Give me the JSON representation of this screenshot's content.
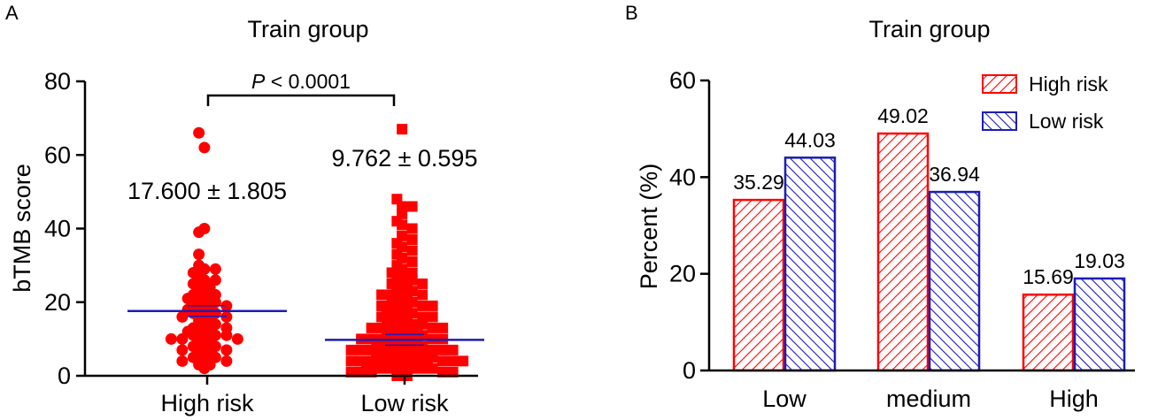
{
  "panel_a": {
    "letter": "A",
    "chart_data": {
      "type": "scatter",
      "title": "Train group",
      "ylabel": "bTMB score",
      "xlabel": "",
      "ylim": [
        0,
        80
      ],
      "yticks": [
        0,
        20,
        40,
        60,
        80
      ],
      "categories": [
        "High risk",
        "Low risk"
      ],
      "pvalue_prefix": "P",
      "pvalue_rest": " < 0.0001",
      "groups": [
        {
          "name": "High risk",
          "marker": "circle",
          "color": "#ff0000",
          "mean_line": 17.6,
          "stats_label": "17.600 ± 1.805",
          "values": [
            66,
            62,
            40,
            39,
            33,
            30,
            29,
            29,
            28,
            27,
            26,
            26,
            25,
            24,
            24,
            23,
            22,
            22,
            21,
            21,
            21,
            20,
            20,
            19,
            19,
            18,
            18,
            18,
            17,
            17,
            17,
            16,
            16,
            15,
            15,
            14,
            14,
            13,
            13,
            12,
            12,
            12,
            11,
            11,
            11,
            11,
            10,
            10,
            10,
            9,
            9,
            8,
            8,
            8,
            7,
            7,
            6,
            6,
            5,
            5,
            5,
            4,
            4,
            3,
            3,
            2
          ]
        },
        {
          "name": "Low risk",
          "marker": "square",
          "color": "#ff0000",
          "mean_line": 9.762,
          "stats_label": "9.762 ± 0.595",
          "values": [
            67,
            48,
            46,
            46,
            44,
            42,
            41,
            40,
            38,
            37,
            36,
            35,
            34,
            33,
            32,
            31,
            30,
            29,
            28,
            28,
            27,
            27,
            26,
            26,
            25,
            25,
            24,
            24,
            23,
            23,
            22,
            22,
            22,
            21,
            21,
            20,
            20,
            20,
            19,
            19,
            19,
            18,
            18,
            18,
            17,
            17,
            17,
            16,
            16,
            16,
            15,
            15,
            15,
            14,
            14,
            14,
            14,
            13,
            13,
            13,
            13,
            12,
            12,
            12,
            12,
            11,
            11,
            11,
            11,
            10,
            10,
            10,
            10,
            10,
            9,
            9,
            9,
            9,
            9,
            8,
            8,
            8,
            8,
            8,
            7,
            7,
            7,
            7,
            7,
            7,
            6,
            6,
            6,
            6,
            6,
            6,
            5,
            5,
            5,
            5,
            5,
            5,
            4,
            4,
            4,
            4,
            4,
            4,
            3,
            3,
            3,
            3,
            3,
            3,
            3,
            2,
            2,
            2,
            2,
            2,
            2,
            1,
            1,
            1,
            1,
            1,
            0,
            0
          ]
        }
      ]
    }
  },
  "panel_b": {
    "letter": "B",
    "chart_data": {
      "type": "bar",
      "title": "Train group",
      "ylabel": "Percent (%)",
      "xlabel": "",
      "ylim": [
        0,
        60
      ],
      "yticks": [
        0,
        20,
        40,
        60
      ],
      "categories": [
        "Low",
        "medium",
        "High"
      ],
      "legend_position": "top-right",
      "series": [
        {
          "name": "High risk",
          "color": "#ff0000",
          "values": [
            35.29,
            49.02,
            15.69
          ],
          "labels": [
            "35.29",
            "49.02",
            "15.69"
          ]
        },
        {
          "name": "Low risk",
          "color": "#1c1cb8",
          "values": [
            44.03,
            36.94,
            19.03
          ],
          "labels": [
            "44.03",
            "36.94",
            "19.03"
          ]
        }
      ]
    }
  }
}
